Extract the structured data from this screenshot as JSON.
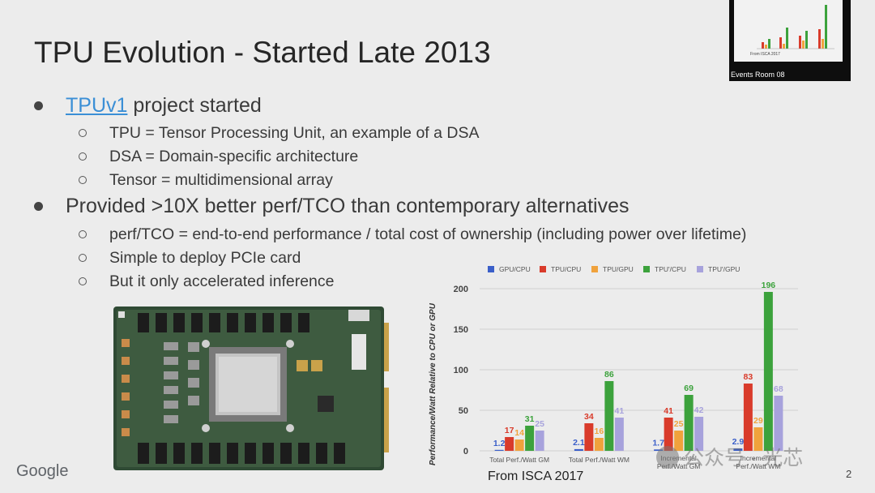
{
  "slide": {
    "title": "TPU Evolution - Started Late 2013",
    "bullet1_link": "TPUv1",
    "bullet1_rest": " project started",
    "sub1": [
      "TPU = Tensor Processing Unit, an example of a DSA",
      "DSA = Domain-specific architecture",
      "Tensor = multidimensional array"
    ],
    "bullet2": "Provided >10X better perf/TCO than contemporary alternatives",
    "sub2": [
      "perf/TCO = end-to-end performance / total cost of ownership (including power over lifetime)",
      "Simple to deploy PCIe card",
      "But it only accelerated inference"
    ],
    "source": "From ISCA 2017",
    "logo": "Google",
    "page": "2"
  },
  "video": {
    "label": "Events Room 08",
    "screen_text": "From ISCA 2017"
  },
  "watermark": {
    "text": "公众号 · 光芯"
  },
  "colors": {
    "background": "#ececec",
    "link": "#3b8fd6",
    "series": [
      "#3b5fc9",
      "#d93b2b",
      "#f0a23c",
      "#3ca23c",
      "#a7a2dc"
    ]
  },
  "chart_data": {
    "type": "bar",
    "title": "",
    "ylabel": "Performance/Watt Relative to CPU or GPU",
    "xlabel": "",
    "ylim": [
      0,
      200
    ],
    "yticks": [
      0,
      50,
      100,
      150,
      200
    ],
    "grid": true,
    "legend": "top",
    "categories": [
      "Total Perf./Watt GM",
      "Total Perf./Watt WM",
      "Incremental Perf./Watt GM",
      "Incremental Perf./Watt WM"
    ],
    "series": [
      {
        "name": "GPU/CPU",
        "color": "#3b5fc9",
        "values": [
          1.2,
          2.1,
          1.7,
          2.9
        ]
      },
      {
        "name": "TPU/CPU",
        "color": "#d93b2b",
        "values": [
          17,
          34,
          41,
          83
        ]
      },
      {
        "name": "TPU/GPU",
        "color": "#f0a23c",
        "values": [
          14,
          16,
          25,
          29
        ]
      },
      {
        "name": "TPU'/CPU",
        "color": "#3ca23c",
        "values": [
          31,
          86,
          69,
          196
        ]
      },
      {
        "name": "TPU'/GPU",
        "color": "#a7a2dc",
        "values": [
          25,
          41,
          42,
          68
        ]
      }
    ]
  }
}
